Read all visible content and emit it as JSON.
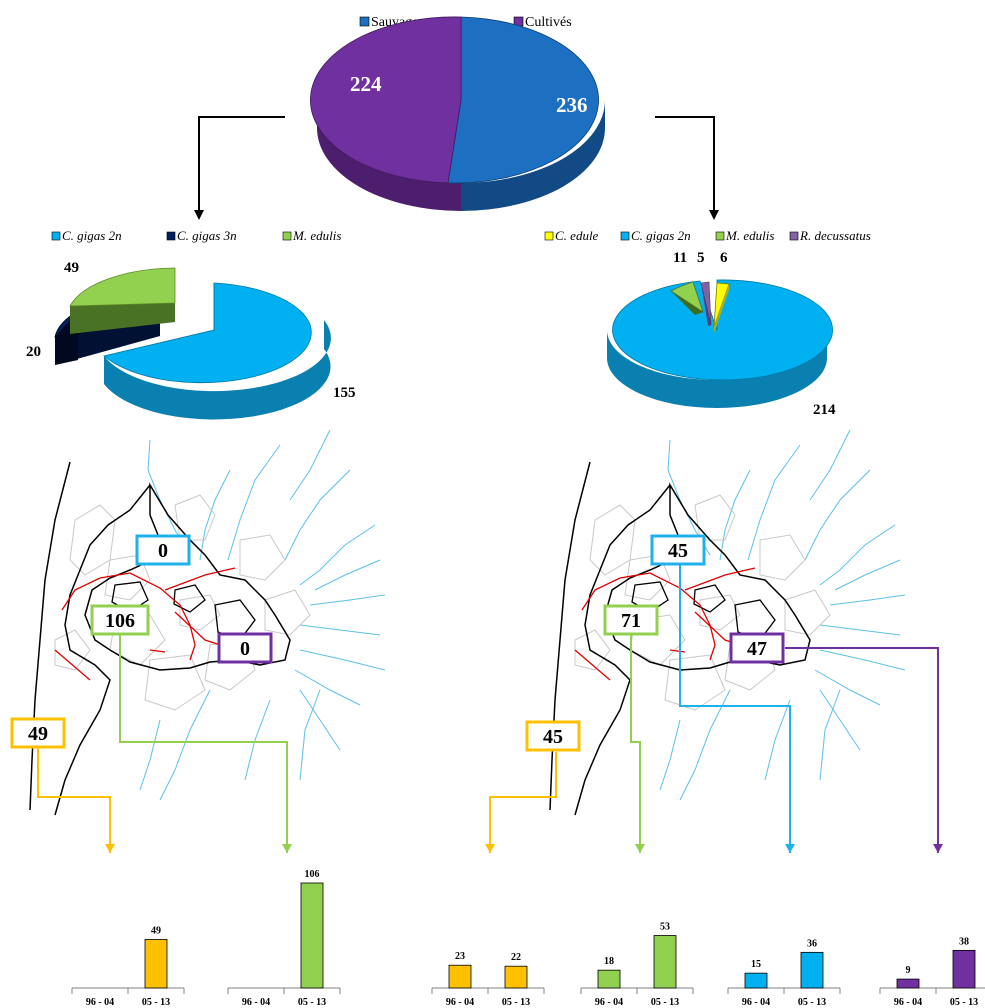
{
  "chart_data": [
    {
      "type": "pie",
      "legend": [
        "Sauvages",
        "Cultivés"
      ],
      "values": [
        236,
        224
      ],
      "colors": [
        "#1c6fc1",
        "#7030a0"
      ],
      "labels": [
        "236",
        "224"
      ]
    },
    {
      "type": "pie",
      "legend": [
        "C. gigas 2n",
        "C. gigas 3n",
        "M. edulis"
      ],
      "values": [
        155,
        20,
        49
      ],
      "colors": [
        "#00b0f0",
        "#002060",
        "#92d050"
      ],
      "labels": [
        "155",
        "20",
        "49"
      ]
    },
    {
      "type": "pie",
      "legend": [
        "C. edule",
        "C. gigas 2n",
        "M. edulis",
        "R. decussatus"
      ],
      "values": [
        6,
        214,
        11,
        5
      ],
      "colors": [
        "#ffff00",
        "#00b0f0",
        "#92d050",
        "#8064a2"
      ],
      "labels": [
        "6",
        "214",
        "11",
        "5"
      ]
    },
    {
      "type": "map",
      "zones_left": [
        {
          "value": "0",
          "color": "#1fb1ea"
        },
        {
          "value": "106",
          "color": "#92d050"
        },
        {
          "value": "0",
          "color": "#7030a0"
        },
        {
          "value": "49",
          "color": "#ffc000"
        }
      ],
      "zones_right": [
        {
          "value": "45",
          "color": "#1fb1ea"
        },
        {
          "value": "71",
          "color": "#92d050"
        },
        {
          "value": "47",
          "color": "#7030a0"
        },
        {
          "value": "45",
          "color": "#ffc000"
        }
      ]
    },
    {
      "type": "bar",
      "categories": [
        "96 - 04",
        "05 - 13"
      ],
      "panels": [
        {
          "values": [
            null,
            49
          ],
          "color": "#ffc000"
        },
        {
          "values": [
            null,
            106
          ],
          "color": "#92d050"
        },
        {
          "values": [
            23,
            22
          ],
          "color": "#ffc000"
        },
        {
          "values": [
            18,
            53
          ],
          "color": "#92d050"
        },
        {
          "values": [
            15,
            36
          ],
          "color": "#00b0f0"
        },
        {
          "values": [
            9,
            38
          ],
          "color": "#7030a0"
        }
      ]
    }
  ]
}
